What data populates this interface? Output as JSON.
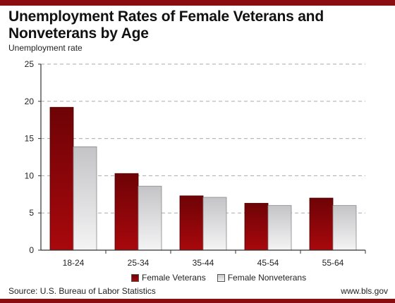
{
  "title": "Unemployment Rates of Female Veterans and Nonveterans by Age",
  "source": "Source: U.S. Bureau of Labor Statistics",
  "site": "www.bls.gov",
  "colors": {
    "brand_bar": "#8b0d10",
    "series_1_top": "#6e0306",
    "series_1_bottom": "#a8080c",
    "series_2_top": "#c4c4c6",
    "series_2_bottom": "#f4f4f5",
    "grid": "#aaaaaa"
  },
  "chart_data": {
    "type": "bar",
    "title": "Unemployment Rates of Female Veterans and Nonveterans by Age",
    "ylabel": "Unemployment rate",
    "xlabel": "",
    "categories": [
      "18-24",
      "25-34",
      "35-44",
      "45-54",
      "55-64"
    ],
    "series": [
      {
        "name": "Female Veterans",
        "values": [
          19.2,
          10.3,
          7.3,
          6.3,
          7.0
        ]
      },
      {
        "name": "Female Nonveterans",
        "values": [
          13.9,
          8.6,
          7.1,
          6.0,
          6.0
        ]
      }
    ],
    "ylim": [
      0,
      25
    ],
    "yticks": [
      0,
      5,
      10,
      15,
      20,
      25
    ],
    "grid": true,
    "legend_position": "bottom"
  }
}
